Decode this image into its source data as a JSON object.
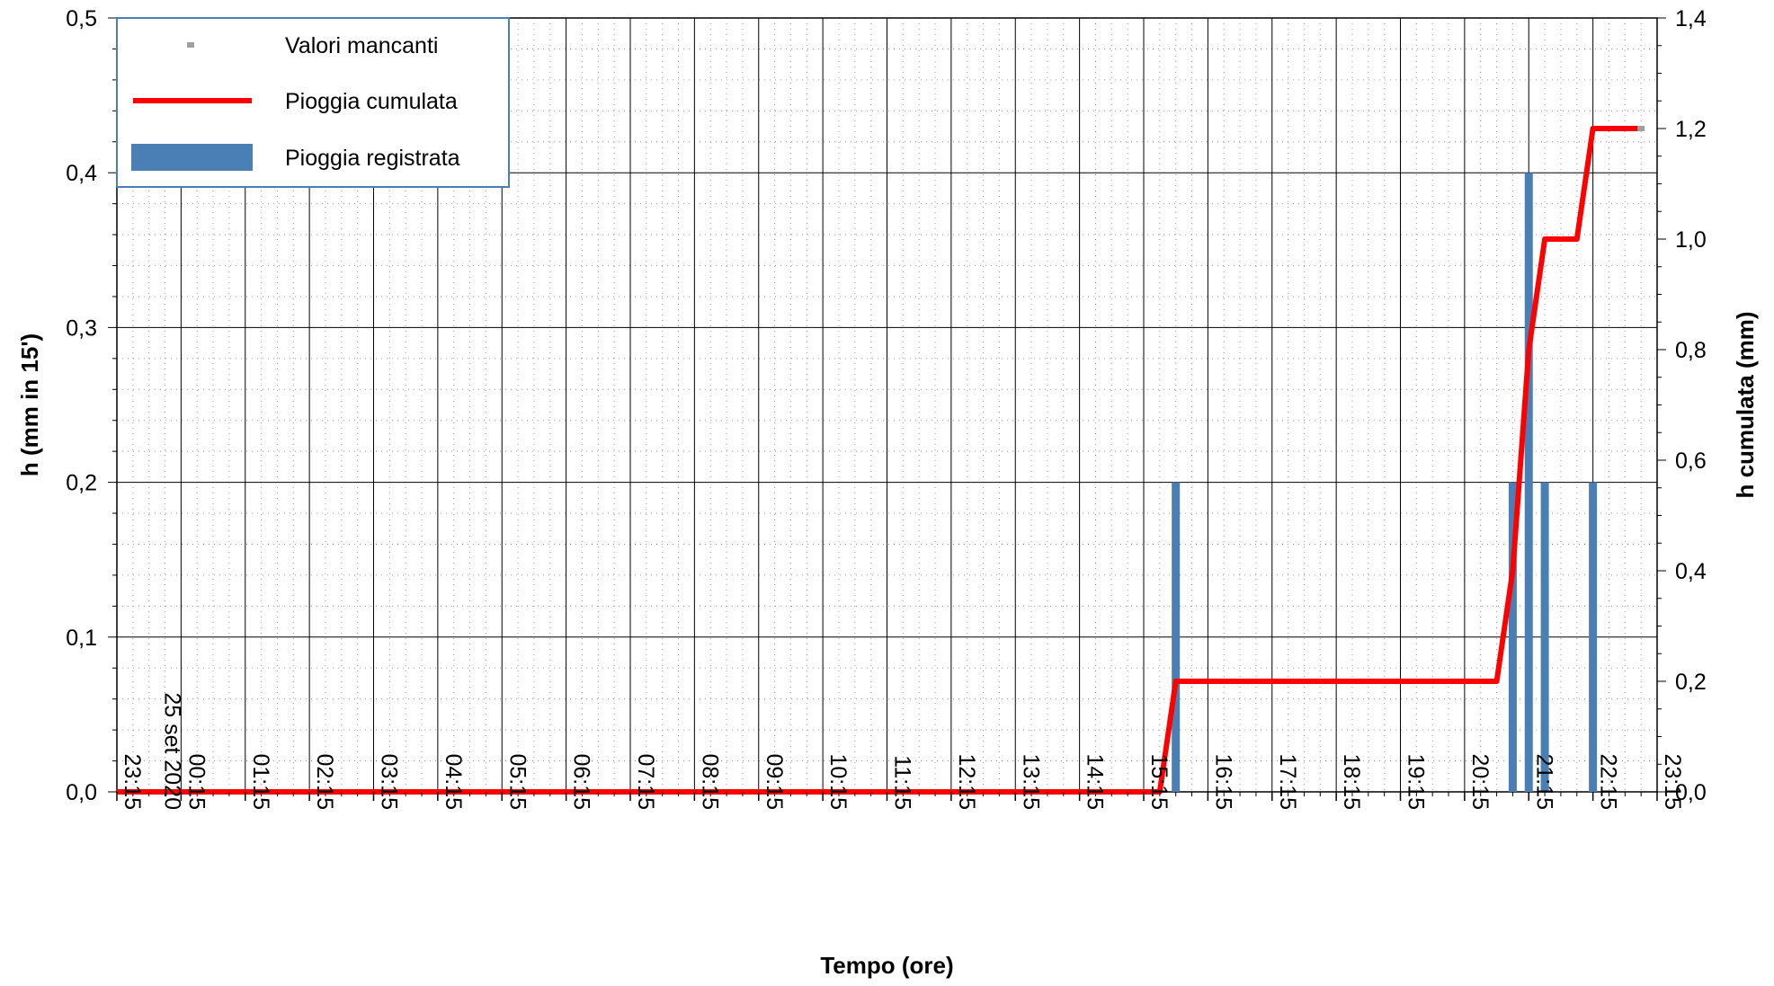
{
  "chart_data": {
    "type": "bar",
    "title": "",
    "xlabel": "Tempo (ore)",
    "ylabel_left": "h (mm in 15')",
    "ylabel_right": "h cumulata (mm)",
    "x_tick_labels": [
      "23:15",
      "00:15",
      "01:15",
      "02:15",
      "03:15",
      "04:15",
      "05:15",
      "06:15",
      "07:15",
      "08:15",
      "09:15",
      "10:15",
      "11:15",
      "12:15",
      "13:15",
      "14:15",
      "15:15",
      "16:15",
      "17:15",
      "18:15",
      "19:15",
      "20:15",
      "21:15",
      "22:15",
      "23:15"
    ],
    "date_label": "25 set 2020",
    "x_range_hours": [
      0,
      24
    ],
    "ylim_left": [
      0,
      0.5
    ],
    "y_ticks_left": [
      "0,0",
      "0,1",
      "0,2",
      "0,3",
      "0,4",
      "0,5"
    ],
    "ylim_right": [
      0,
      1.4
    ],
    "y_ticks_right": [
      "0,0",
      "0,2",
      "0,4",
      "0,6",
      "0,8",
      "1,0",
      "1,2",
      "1,4"
    ],
    "grid": true,
    "legend": {
      "placement": "top-left",
      "entries": [
        {
          "label": "Valori mancanti",
          "color": "#a0a0a0",
          "kind": "marker"
        },
        {
          "label": "Pioggia cumulata",
          "color": "#ff0000",
          "kind": "line"
        },
        {
          "label": "Pioggia registrata",
          "color": "#4a7fb5",
          "kind": "bar"
        }
      ]
    },
    "series": [
      {
        "name": "Pioggia registrata",
        "kind": "bar",
        "axis": "left",
        "color": "#4a7fb5",
        "points": [
          {
            "x": 16.5,
            "y": 0.2
          },
          {
            "x": 21.75,
            "y": 0.2
          },
          {
            "x": 22.0,
            "y": 0.4
          },
          {
            "x": 22.25,
            "y": 0.2
          },
          {
            "x": 23.0,
            "y": 0.2
          }
        ]
      },
      {
        "name": "Pioggia cumulata",
        "kind": "line",
        "axis": "right",
        "color": "#ff0000",
        "points": [
          {
            "x": 0,
            "y": 0
          },
          {
            "x": 16.25,
            "y": 0
          },
          {
            "x": 16.5,
            "y": 0.2
          },
          {
            "x": 21.5,
            "y": 0.2
          },
          {
            "x": 21.75,
            "y": 0.4
          },
          {
            "x": 22.0,
            "y": 0.8
          },
          {
            "x": 22.25,
            "y": 1.0
          },
          {
            "x": 22.75,
            "y": 1.0
          },
          {
            "x": 23.0,
            "y": 1.2
          },
          {
            "x": 23.75,
            "y": 1.2
          }
        ]
      },
      {
        "name": "Valori mancanti",
        "kind": "marker",
        "axis": "right",
        "color": "#a0a0a0",
        "points": [
          {
            "x": 23.75,
            "y": 1.2
          }
        ]
      }
    ]
  }
}
